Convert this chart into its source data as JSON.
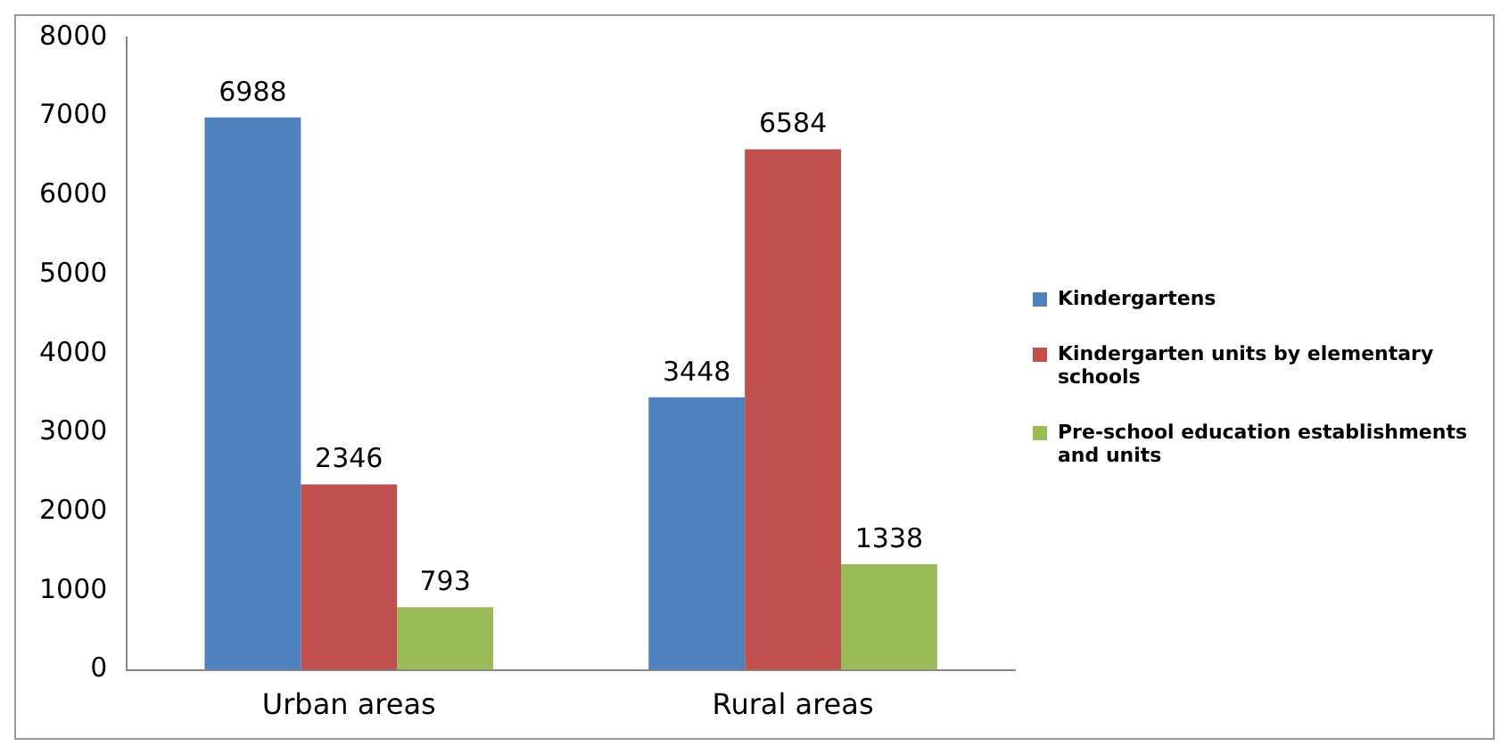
{
  "chart_data": {
    "type": "bar",
    "categories": [
      "Urban areas",
      "Rural areas"
    ],
    "series": [
      {
        "name": "Kindergartens",
        "color": "#4f81bd",
        "values": [
          6988,
          3448
        ]
      },
      {
        "name": "Kindergarten units by elementary schools",
        "color": "#c0504d",
        "values": [
          2346,
          6584
        ]
      },
      {
        "name": "Pre-school education establishments and units",
        "color": "#9bbb59",
        "values": [
          793,
          1338
        ]
      }
    ],
    "ylim": [
      0,
      8000
    ],
    "yticks": [
      0,
      1000,
      2000,
      3000,
      4000,
      5000,
      6000,
      7000,
      8000
    ],
    "grid": false,
    "legend": "right",
    "data_labels": true
  }
}
